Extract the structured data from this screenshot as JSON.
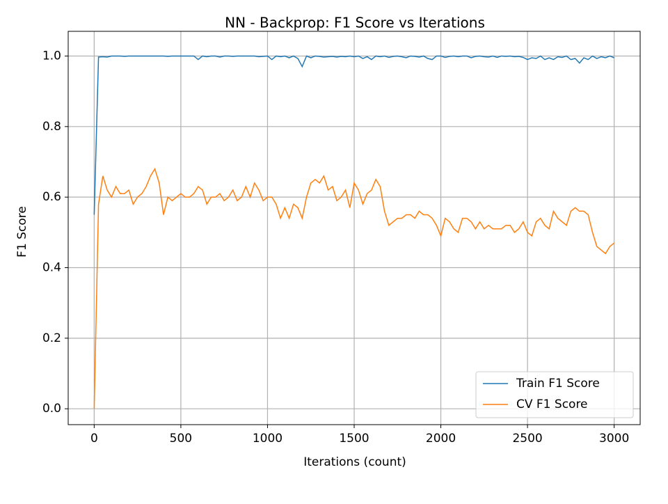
{
  "chart_data": {
    "type": "line",
    "title": "NN - Backprop: F1 Score vs Iterations",
    "x_label": "Iterations (count)",
    "y_label": "F1 Score",
    "x": [
      0,
      25,
      50,
      75,
      100,
      125,
      150,
      175,
      200,
      225,
      250,
      275,
      300,
      325,
      350,
      375,
      400,
      425,
      450,
      475,
      500,
      525,
      550,
      575,
      600,
      625,
      650,
      675,
      700,
      725,
      750,
      775,
      800,
      825,
      850,
      875,
      900,
      925,
      950,
      975,
      1000,
      1025,
      1050,
      1075,
      1100,
      1125,
      1150,
      1175,
      1200,
      1225,
      1250,
      1275,
      1300,
      1325,
      1350,
      1375,
      1400,
      1425,
      1450,
      1475,
      1500,
      1525,
      1550,
      1575,
      1600,
      1625,
      1650,
      1675,
      1700,
      1725,
      1750,
      1775,
      1800,
      1825,
      1850,
      1875,
      1900,
      1925,
      1950,
      1975,
      2000,
      2025,
      2050,
      2075,
      2100,
      2125,
      2150,
      2175,
      2200,
      2225,
      2250,
      2275,
      2300,
      2325,
      2350,
      2375,
      2400,
      2425,
      2450,
      2475,
      2500,
      2525,
      2550,
      2575,
      2600,
      2625,
      2650,
      2675,
      2700,
      2725,
      2750,
      2775,
      2800,
      2825,
      2850,
      2875,
      2900,
      2925,
      2950,
      2975,
      3000
    ],
    "series": [
      {
        "name": "Train F1 Score",
        "color": "#1f77b4",
        "values": [
          0.55,
          0.997,
          0.998,
          0.997,
          1.0,
          1.0,
          1.0,
          0.999,
          1.0,
          1.0,
          1.0,
          1.0,
          1.0,
          1.0,
          1.0,
          1.0,
          1.0,
          0.999,
          1.0,
          1.0,
          1.0,
          1.0,
          1.0,
          1.0,
          0.99,
          1.0,
          0.998,
          1.0,
          1.0,
          0.997,
          1.0,
          1.0,
          0.999,
          1.0,
          1.0,
          1.0,
          1.0,
          1.0,
          0.998,
          0.999,
          1.0,
          0.99,
          1.0,
          0.998,
          1.0,
          0.995,
          1.0,
          0.993,
          0.97,
          1.0,
          0.995,
          1.0,
          0.999,
          0.997,
          0.998,
          0.999,
          0.997,
          0.999,
          0.998,
          1.0,
          0.998,
          1.0,
          0.993,
          0.998,
          0.99,
          1.0,
          0.998,
          1.0,
          0.996,
          0.999,
          1.0,
          0.998,
          0.995,
          1.0,
          0.999,
          0.997,
          1.0,
          0.993,
          0.99,
          1.0,
          1.0,
          0.996,
          0.999,
          1.0,
          0.998,
          1.0,
          1.0,
          0.995,
          0.999,
          1.0,
          0.998,
          0.997,
          1.0,
          0.996,
          1.0,
          0.999,
          1.0,
          0.998,
          0.999,
          0.996,
          0.99,
          0.995,
          0.993,
          1.0,
          0.99,
          0.995,
          0.99,
          0.998,
          0.996,
          1.0,
          0.99,
          0.993,
          0.98,
          0.995,
          0.99,
          1.0,
          0.993,
          0.998,
          0.995,
          1.0,
          0.995
        ]
      },
      {
        "name": "CV F1 Score",
        "color": "#ff7f0e",
        "values": [
          0.0,
          0.58,
          0.66,
          0.62,
          0.6,
          0.63,
          0.61,
          0.61,
          0.62,
          0.58,
          0.6,
          0.61,
          0.63,
          0.66,
          0.68,
          0.64,
          0.55,
          0.6,
          0.59,
          0.6,
          0.61,
          0.6,
          0.6,
          0.61,
          0.63,
          0.62,
          0.58,
          0.6,
          0.6,
          0.61,
          0.59,
          0.6,
          0.62,
          0.59,
          0.6,
          0.63,
          0.6,
          0.64,
          0.62,
          0.59,
          0.6,
          0.6,
          0.58,
          0.54,
          0.57,
          0.54,
          0.58,
          0.57,
          0.54,
          0.6,
          0.64,
          0.65,
          0.64,
          0.66,
          0.62,
          0.63,
          0.59,
          0.6,
          0.62,
          0.57,
          0.64,
          0.62,
          0.58,
          0.61,
          0.62,
          0.65,
          0.63,
          0.56,
          0.52,
          0.53,
          0.54,
          0.54,
          0.55,
          0.55,
          0.54,
          0.56,
          0.55,
          0.55,
          0.54,
          0.52,
          0.49,
          0.54,
          0.53,
          0.51,
          0.5,
          0.54,
          0.54,
          0.53,
          0.51,
          0.53,
          0.51,
          0.52,
          0.51,
          0.51,
          0.51,
          0.52,
          0.52,
          0.5,
          0.51,
          0.53,
          0.5,
          0.49,
          0.53,
          0.54,
          0.52,
          0.51,
          0.56,
          0.54,
          0.53,
          0.52,
          0.56,
          0.57,
          0.56,
          0.56,
          0.55,
          0.5,
          0.46,
          0.45,
          0.44,
          0.46,
          0.47
        ]
      }
    ],
    "xlim": [
      -150,
      3150
    ],
    "ylim": [
      -0.045,
      1.07
    ],
    "xticks": [
      0,
      500,
      1000,
      1500,
      2000,
      2500,
      3000
    ],
    "yticks": [
      {
        "value": 0,
        "label": "0.0"
      },
      {
        "value": 0.2,
        "label": "0.2"
      },
      {
        "value": 0.4,
        "label": "0.4"
      },
      {
        "value": 0.6,
        "label": "0.6"
      },
      {
        "value": 0.8,
        "label": "0.8"
      },
      {
        "value": 1,
        "label": "1.0"
      }
    ],
    "grid": true,
    "legend": "lower right"
  }
}
